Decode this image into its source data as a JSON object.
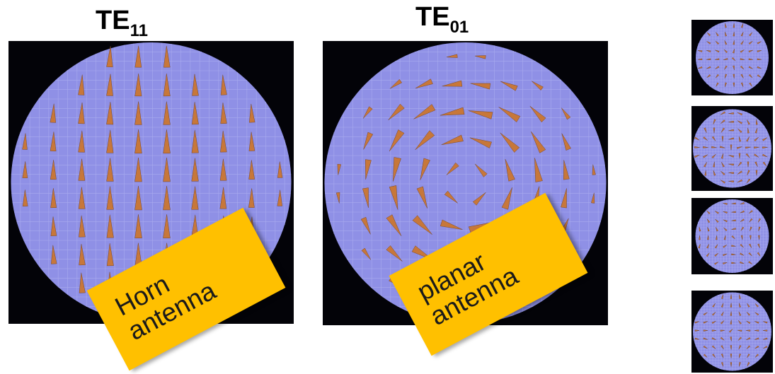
{
  "modes": [
    {
      "base": "TE",
      "sub": "11"
    },
    {
      "base": "TE",
      "sub": "01"
    }
  ],
  "notes": [
    {
      "line1": "Horn",
      "line2": "antenna"
    },
    {
      "line1": "planar",
      "line2": "antenna"
    }
  ],
  "colors": {
    "disc": "#8f90e6",
    "background": "#030308",
    "arrow": "#c7773a",
    "note": "#ffc000"
  },
  "field_patterns": [
    "TE11-vertical-field",
    "TE01-circular-field",
    "higher-mode-1",
    "higher-mode-2",
    "higher-mode-3",
    "higher-mode-4"
  ]
}
